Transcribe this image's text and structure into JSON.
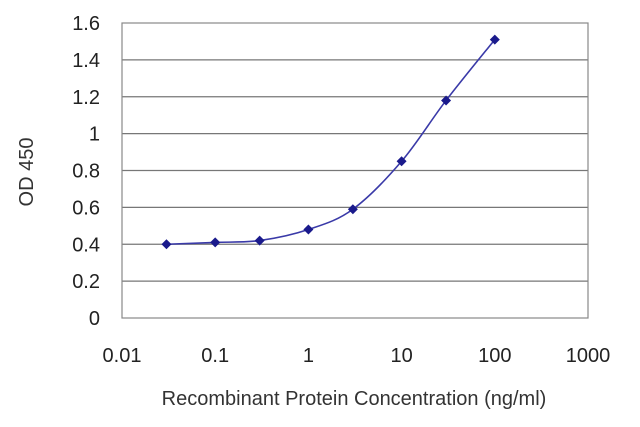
{
  "chart_data": {
    "type": "scatter",
    "title": "",
    "xlabel": "Recombinant Protein Concentration (ng/ml)",
    "ylabel": "OD 450",
    "x_scale": "log",
    "xlim": [
      0.01,
      1000
    ],
    "ylim": [
      0,
      1.6
    ],
    "x_ticks": [
      0.01,
      0.1,
      1,
      10,
      100,
      1000
    ],
    "x_tick_labels": [
      "0.01",
      "0.1",
      "1",
      "10",
      "100",
      "1000"
    ],
    "y_ticks": [
      0,
      0.2,
      0.4,
      0.6,
      0.8,
      1,
      1.2,
      1.4,
      1.6
    ],
    "y_tick_labels": [
      "0",
      "0.2",
      "0.4",
      "0.6",
      "0.8",
      "1",
      "1.2",
      "1.4",
      "1.6"
    ],
    "grid": {
      "horizontal": true,
      "vertical": false
    },
    "legend": "none",
    "colors": {
      "series": "#3a3aa8",
      "marker": "#1a1a8c",
      "grid": "#777777",
      "frame": "#888888"
    },
    "series": [
      {
        "x": [
          0.03,
          0.1,
          0.3,
          1,
          3,
          10,
          30,
          100
        ],
        "y": [
          0.4,
          0.41,
          0.42,
          0.48,
          0.59,
          0.85,
          1.18,
          1.51
        ],
        "line": "smooth",
        "marker": "diamond"
      }
    ]
  }
}
